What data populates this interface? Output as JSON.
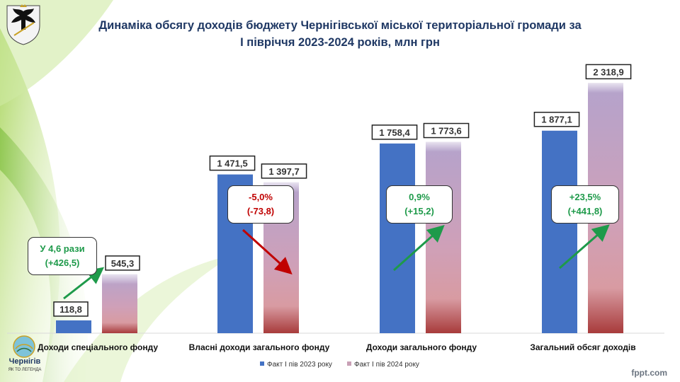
{
  "title_line1": "Динаміка обсягу доходів  бюджету Чернігівської міської територіальної громади за",
  "title_line2": "І півріччя 2023-2024 років, млн грн",
  "colors": {
    "series_2023": "#4472c4",
    "series_2024_top": "#b4a3cc",
    "series_2024_mid": "#d89ba2",
    "series_2024_bottom": "#a83b3b",
    "up": "#1e9a4a",
    "down": "#c00000",
    "green_light": "#cde99a",
    "green_dark": "#5aa51b"
  },
  "chart_data": {
    "type": "bar",
    "title": "Динаміка обсягу доходів  бюджету Чернігівської міської територіальної громади за І півріччя 2023-2024 років, млн грн",
    "categories": [
      "Доходи спеціального фонду",
      "Власні доходи загального фонду",
      "Доходи загального фонду",
      "Загальний обсяг доходів"
    ],
    "series": [
      {
        "name": "Факт І пів 2023 року",
        "values": [
          118.8,
          1471.5,
          1758.4,
          1877.1
        ],
        "labels": [
          "118,8",
          "1 471,5",
          "1 758,4",
          "1 877,1"
        ]
      },
      {
        "name": "Факт І пів 2024 року",
        "values": [
          545.3,
          1397.7,
          1773.6,
          2318.9
        ],
        "labels": [
          "545,3",
          "1 397,7",
          "1 773,6",
          "2 318,9"
        ]
      }
    ],
    "ylim": [
      0,
      2500
    ],
    "grid": false,
    "legend": "bottom",
    "annotations": [
      {
        "category": 0,
        "direction": "up",
        "line1": "У 4,6 рази",
        "line2": "(+426,5)"
      },
      {
        "category": 1,
        "direction": "down",
        "line1": "-5,0%",
        "line2": "(-73,8)"
      },
      {
        "category": 2,
        "direction": "up",
        "line1": "0,9%",
        "line2": "(+15,2)"
      },
      {
        "category": 3,
        "direction": "up",
        "line1": "+23,5%",
        "line2": "(+441,8)"
      }
    ]
  },
  "logo": {
    "name": "Чернігів",
    "motto": "ЯК ТО ЛЕГЕНДА"
  },
  "watermark": "fppt.com"
}
